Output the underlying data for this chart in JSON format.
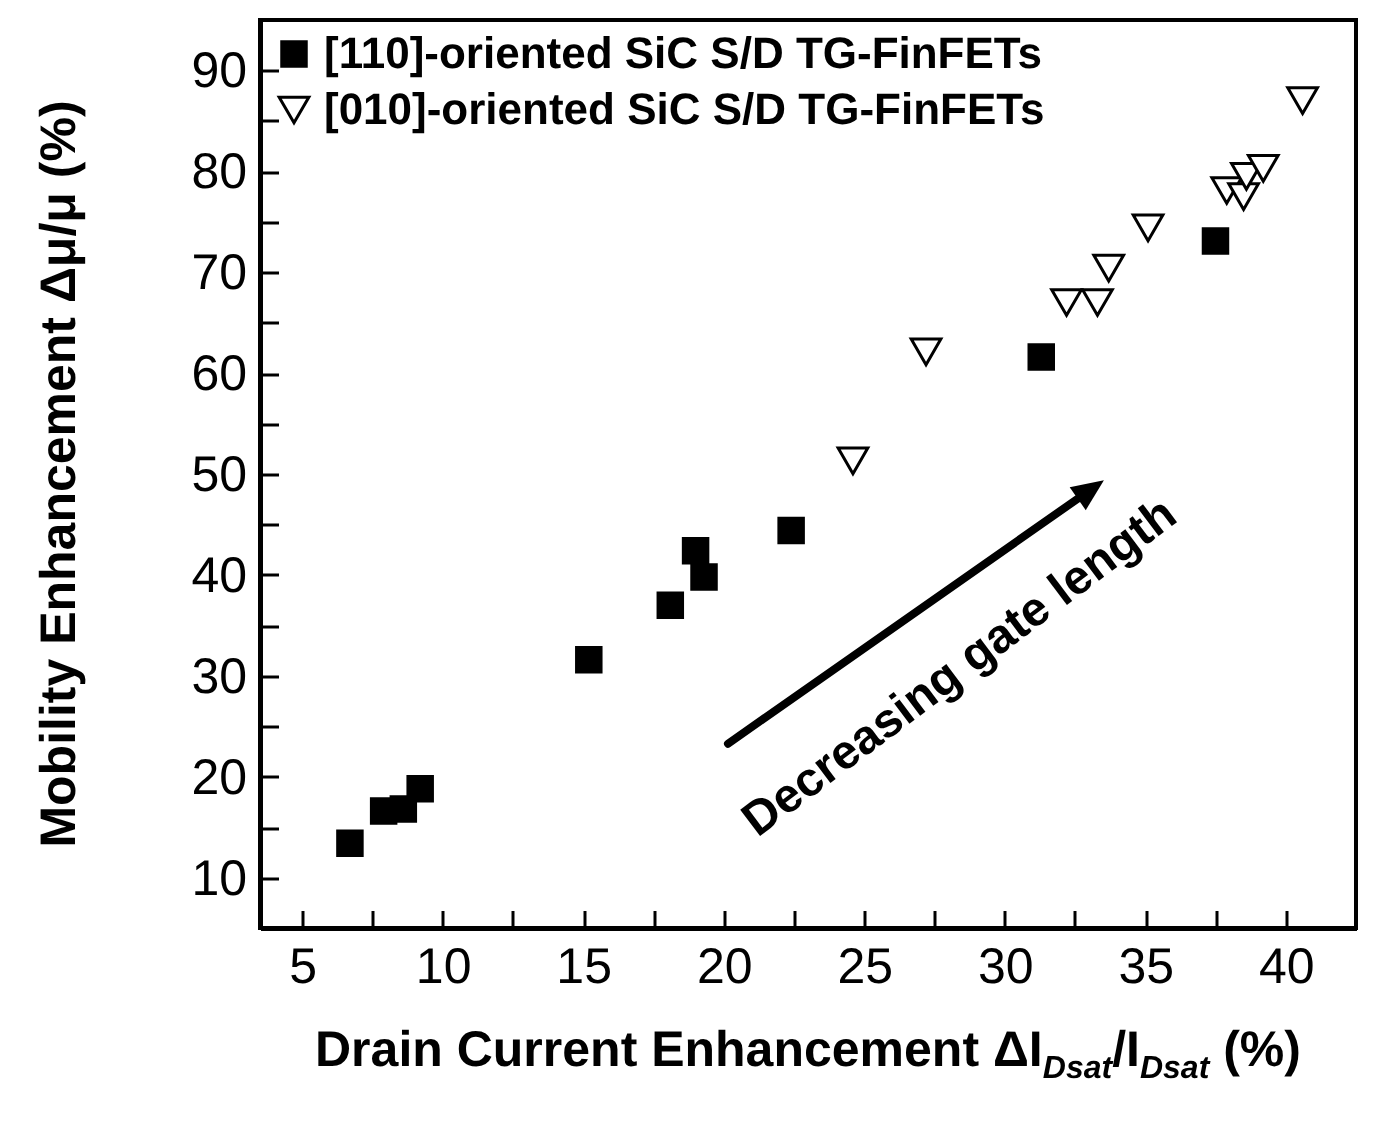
{
  "chart_data": {
    "type": "scatter",
    "xlabel": "Drain Current Enhancement ΔI$_{Dsat}$/I$_{Dsat}$ (%)",
    "ylabel": "Mobility Enhancement Δμ/μ (%)",
    "annotations": [
      "Decreasing gate length"
    ],
    "xlim": [
      3.5,
      42.5
    ],
    "xticks": [
      5,
      {
        "value": 7.5,
        "label": null
      },
      10,
      {
        "value": 12.5,
        "label": null
      },
      15,
      {
        "value": 17.5,
        "label": null
      },
      20,
      {
        "value": 22.5,
        "label": null
      },
      25,
      {
        "value": 27.5,
        "label": null
      },
      30,
      {
        "value": 32.5,
        "label": null
      },
      35,
      {
        "value": 37.5,
        "label": null
      },
      40
    ],
    "ylim": [
      5,
      95
    ],
    "yticks": [
      10,
      {
        "value": 15,
        "label": null
      },
      20,
      {
        "value": 25,
        "label": null
      },
      30,
      {
        "value": 35,
        "label": null
      },
      40,
      {
        "value": 45,
        "label": null
      },
      50,
      {
        "value": 55,
        "label": null
      },
      60,
      {
        "value": 65,
        "label": null
      },
      70,
      {
        "value": 75,
        "label": null
      },
      80,
      {
        "value": 85,
        "label": null
      },
      90
    ],
    "grid": false,
    "legend": "top left",
    "series": [
      {
        "name": "[110]-oriented SiC S/D TG-FinFETs",
        "color": "#000000",
        "marker": "square",
        "x": [
          6.7,
          7.9,
          8.6,
          9.2,
          15.2,
          18.1,
          19.0,
          19.3,
          22.4,
          31.3,
          37.5
        ],
        "values": [
          13.4,
          16.6,
          16.8,
          18.8,
          31.6,
          37.0,
          42.4,
          39.8,
          44.4,
          61.6,
          73.1
        ]
      },
      {
        "name": "[010]-oriented SiC S/D TG-FinFETs",
        "color": "#000000",
        "marker": "triangle",
        "x": [
          24.6,
          27.2,
          32.2,
          33.3,
          33.7,
          35.1,
          37.9,
          38.5,
          38.6,
          39.2,
          40.6
        ],
        "values": [
          51.3,
          62.1,
          67.0,
          67.0,
          70.4,
          74.4,
          78.1,
          77.5,
          79.5,
          80.3,
          87.0
        ]
      }
    ]
  }
}
